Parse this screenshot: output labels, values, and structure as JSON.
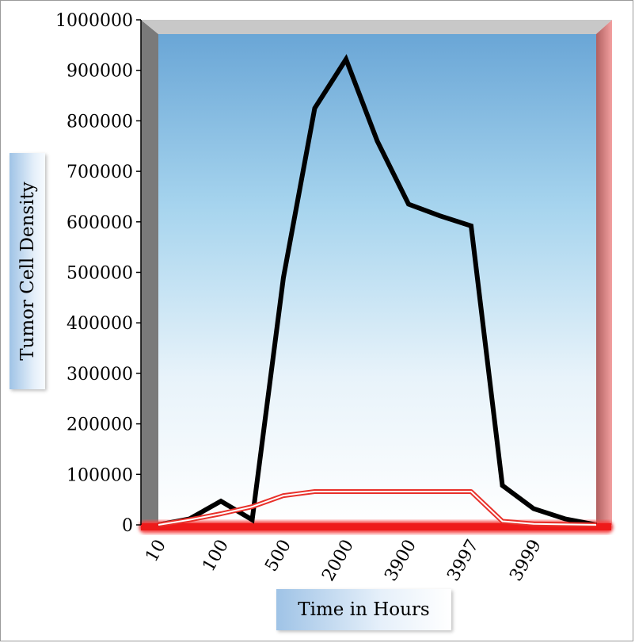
{
  "chart_data": {
    "type": "line",
    "xlabel": "Time in Hours",
    "ylabel": "Tumor Cell Density",
    "ylim": [
      0,
      1000000
    ],
    "y_ticks": [
      0,
      100000,
      200000,
      300000,
      400000,
      500000,
      600000,
      700000,
      800000,
      900000,
      1000000
    ],
    "y_tick_labels": [
      "0",
      "100000",
      "200000",
      "300000",
      "400000",
      "500000",
      "600000",
      "700000",
      "800000",
      "900000",
      "1000000"
    ],
    "x_tick_labels": [
      "10",
      "100",
      "500",
      "2000",
      "3900",
      "3997",
      "3999"
    ],
    "x_tick_positions": [
      0.5,
      2.5,
      4.5,
      6.5,
      8.5,
      10.5,
      12.5
    ],
    "x_count": 15,
    "series": [
      {
        "color": "#000000",
        "style": "solid-thick",
        "values": [
          0,
          12000,
          47000,
          10000,
          490000,
          825000,
          922000,
          760000,
          635000,
          612000,
          592000,
          78000,
          32000,
          12000,
          0
        ]
      },
      {
        "color": "#e8302a",
        "style": "double-line",
        "values": [
          0,
          10000,
          22000,
          36000,
          58000,
          66000,
          66000,
          66000,
          66000,
          66000,
          66000,
          7000,
          2000,
          1000,
          0
        ]
      }
    ],
    "plot_background": [
      "#6aa6d6",
      "#ffffff"
    ],
    "grid": false,
    "legend": "none"
  }
}
